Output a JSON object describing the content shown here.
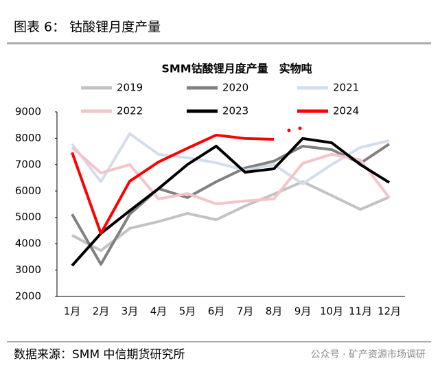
{
  "header": {
    "title": "图表 6：  钴酸锂月度产量"
  },
  "footer": {
    "source": "数据来源：SMM 中信期货研究所",
    "watermark": "公众号 · 矿产资源市场调研"
  },
  "chart_data": {
    "type": "line",
    "title": "SMM钴酸锂月度产量　实物吨",
    "categories": [
      "1月",
      "2月",
      "3月",
      "4月",
      "5月",
      "6月",
      "7月",
      "8月",
      "9月",
      "10月",
      "11月",
      "12月"
    ],
    "ylim": [
      2000,
      9000
    ],
    "yticks": [
      2000,
      3000,
      4000,
      5000,
      6000,
      7000,
      8000,
      9000
    ],
    "grid": false,
    "series": [
      {
        "name": "2019",
        "color": "#c3c3c3",
        "values": [
          4320,
          3740,
          4580,
          4840,
          5150,
          4910,
          5430,
          5880,
          6350,
          5830,
          5300,
          5770
        ]
      },
      {
        "name": "2020",
        "color": "#808080",
        "values": [
          5120,
          3220,
          5120,
          6090,
          5750,
          6350,
          6870,
          7130,
          7700,
          7570,
          7050,
          7780
        ]
      },
      {
        "name": "2021",
        "color": "#d3ddec",
        "values": [
          7780,
          6350,
          8170,
          7390,
          7260,
          7070,
          6790,
          7000,
          6270,
          7000,
          7650,
          7910
        ]
      },
      {
        "name": "2022",
        "color": "#f5c4c8",
        "values": [
          7650,
          6680,
          7000,
          5700,
          5900,
          5510,
          5620,
          5700,
          7050,
          7390,
          7180,
          5750
        ]
      },
      {
        "name": "2023",
        "color": "#000000",
        "values": [
          3170,
          4390,
          5250,
          6090,
          7000,
          7700,
          6710,
          6840,
          7990,
          7830,
          7000,
          6320
        ]
      },
      {
        "name": "2024",
        "color": "#ff0000",
        "values": [
          7460,
          4390,
          6370,
          7100,
          7620,
          8120,
          7990,
          7960,
          null,
          null,
          null,
          null
        ]
      }
    ]
  }
}
